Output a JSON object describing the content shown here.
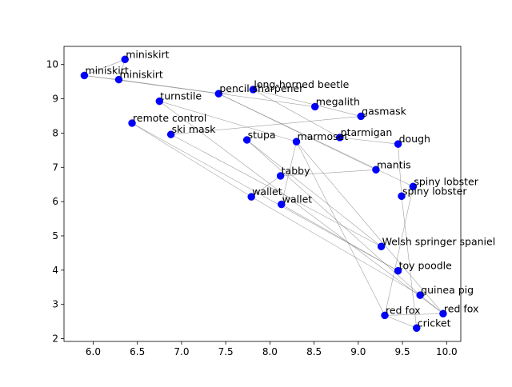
{
  "chart_data": {
    "type": "scatter",
    "title": "",
    "xlabel": "",
    "ylabel": "",
    "xlim": [
      5.67,
      10.16
    ],
    "ylim": [
      1.92,
      10.53
    ],
    "xticks": [
      "6.0",
      "6.5",
      "7.0",
      "7.5",
      "8.0",
      "8.5",
      "9.0",
      "9.5",
      "10.0"
    ],
    "xtick_values": [
      6.0,
      6.5,
      7.0,
      7.5,
      8.0,
      8.5,
      9.0,
      9.5,
      10.0
    ],
    "yticks": [
      "2",
      "3",
      "4",
      "5",
      "6",
      "7",
      "8",
      "9",
      "10"
    ],
    "ytick_values": [
      2,
      3,
      4,
      5,
      6,
      7,
      8,
      9,
      10
    ],
    "grid": false,
    "marker_color": "#0000ff",
    "line_color": "#808080",
    "points": [
      {
        "label": "miniskirt",
        "x": 6.36,
        "y": 10.15
      },
      {
        "label": "miniskirt",
        "x": 5.9,
        "y": 9.68
      },
      {
        "label": "miniskirt",
        "x": 6.29,
        "y": 9.56
      },
      {
        "label": "turnstile",
        "x": 6.75,
        "y": 8.93
      },
      {
        "label": "pencil sharpener",
        "x": 7.42,
        "y": 9.15
      },
      {
        "label": "long-horned beetle",
        "x": 7.81,
        "y": 9.27
      },
      {
        "label": "megalith",
        "x": 8.51,
        "y": 8.77
      },
      {
        "label": "gasmask",
        "x": 9.03,
        "y": 8.49
      },
      {
        "label": "remote control",
        "x": 6.44,
        "y": 8.29
      },
      {
        "label": "ski mask",
        "x": 6.88,
        "y": 7.96
      },
      {
        "label": "stupa",
        "x": 7.74,
        "y": 7.8
      },
      {
        "label": "marmoset",
        "x": 8.3,
        "y": 7.75
      },
      {
        "label": "ptarmigan",
        "x": 8.79,
        "y": 7.87
      },
      {
        "label": "dough",
        "x": 9.45,
        "y": 7.68
      },
      {
        "label": "mantis",
        "x": 9.2,
        "y": 6.93
      },
      {
        "label": "tabby",
        "x": 8.12,
        "y": 6.75
      },
      {
        "label": "spiny lobster",
        "x": 9.62,
        "y": 6.44
      },
      {
        "label": "spiny lobster",
        "x": 9.49,
        "y": 6.16
      },
      {
        "label": "wallet",
        "x": 7.79,
        "y": 6.14
      },
      {
        "label": "wallet",
        "x": 8.13,
        "y": 5.92
      },
      {
        "label": "Welsh springer spaniel",
        "x": 9.26,
        "y": 4.69
      },
      {
        "label": "toy poodle",
        "x": 9.45,
        "y": 3.98
      },
      {
        "label": "guinea pig",
        "x": 9.7,
        "y": 3.27
      },
      {
        "label": "red fox",
        "x": 9.3,
        "y": 2.68
      },
      {
        "label": "red fox",
        "x": 9.96,
        "y": 2.73
      },
      {
        "label": "cricket",
        "x": 9.66,
        "y": 2.31
      }
    ],
    "edges": [
      [
        1,
        0
      ],
      [
        0,
        2
      ],
      [
        1,
        2
      ],
      [
        2,
        6
      ],
      [
        1,
        4
      ],
      [
        4,
        5
      ],
      [
        5,
        12
      ],
      [
        5,
        7
      ],
      [
        7,
        9
      ],
      [
        4,
        16
      ],
      [
        4,
        14
      ],
      [
        3,
        24
      ],
      [
        3,
        11
      ],
      [
        8,
        18
      ],
      [
        8,
        21
      ],
      [
        9,
        20
      ],
      [
        10,
        22
      ],
      [
        10,
        20
      ],
      [
        11,
        19
      ],
      [
        11,
        24
      ],
      [
        11,
        23
      ],
      [
        12,
        13
      ],
      [
        13,
        17
      ],
      [
        14,
        15
      ],
      [
        15,
        18
      ],
      [
        16,
        23
      ],
      [
        17,
        25
      ],
      [
        18,
        22
      ],
      [
        21,
        19
      ],
      [
        22,
        24
      ],
      [
        24,
        23
      ],
      [
        23,
        25
      ]
    ]
  }
}
